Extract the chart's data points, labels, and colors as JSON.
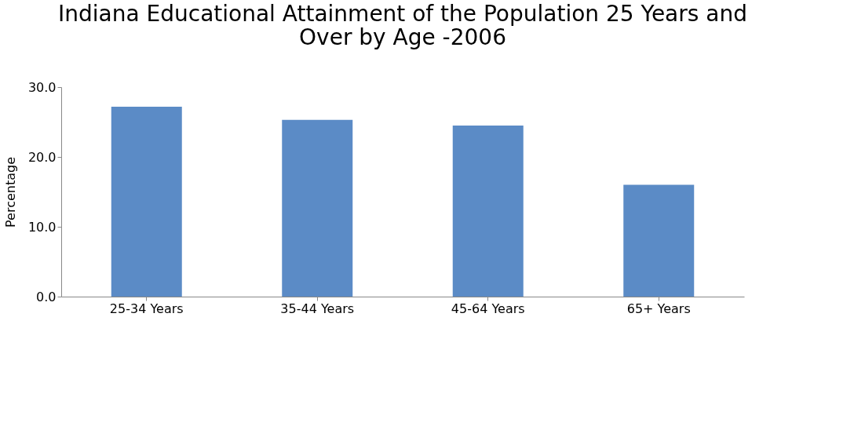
{
  "chart_data": {
    "type": "bar",
    "title": "Indiana Educational Attainment of the Population 25 Years and Over by Age -2006",
    "ylabel": "Percentage",
    "categories": [
      "25-34 Years",
      "35-44 Years",
      "45-64 Years",
      "65+ Years"
    ],
    "values": [
      27.2,
      25.3,
      24.5,
      16.0
    ],
    "color": "#5b8bc6",
    "ylim": [
      0,
      30
    ],
    "yticks": [
      {
        "value": 0,
        "label": "0.0"
      },
      {
        "value": 10,
        "label": "10.0"
      },
      {
        "value": 20,
        "label": "20.0"
      },
      {
        "value": 30,
        "label": "30.0"
      }
    ],
    "grid": false,
    "legend": false
  }
}
